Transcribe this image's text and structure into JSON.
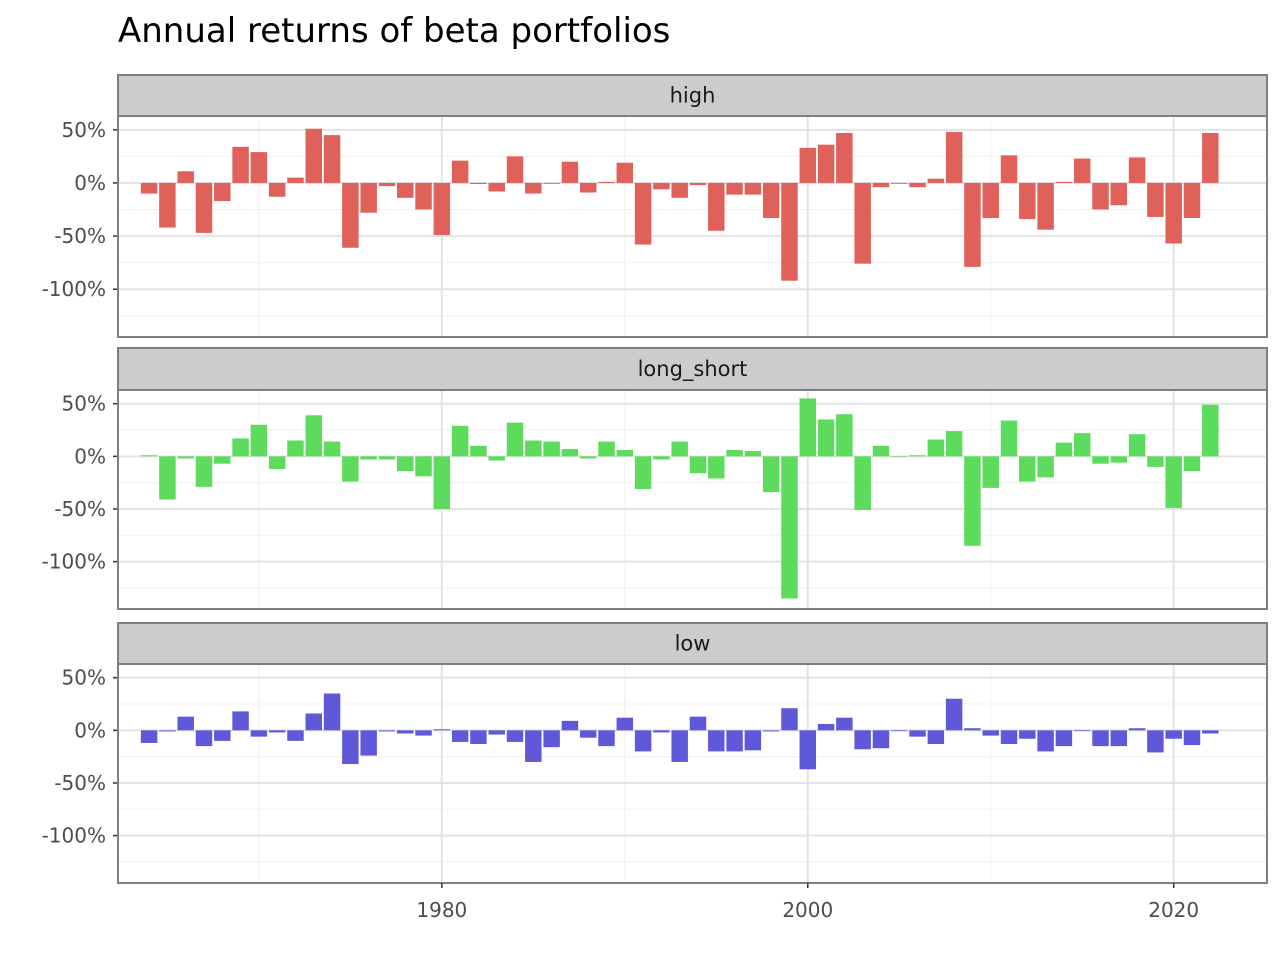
{
  "chart_data": {
    "type": "bar",
    "title": "Annual returns of beta portfolios",
    "xlabel": "",
    "ylabel": "",
    "x_ticks": [
      1980,
      2000,
      2020
    ],
    "y_ticks": [
      -100,
      -50,
      0,
      50
    ],
    "y_tick_labels": [
      "-100%",
      "-50%",
      "0%",
      "50%"
    ],
    "xlim": [
      1962.3,
      2025.1
    ],
    "ylim": [
      -145,
      63
    ],
    "grid": true,
    "colors": {
      "high": "#e0605a",
      "long_short": "#5ddb5d",
      "low": "#5f59d9"
    },
    "years": [
      1964,
      1965,
      1966,
      1967,
      1968,
      1969,
      1970,
      1971,
      1972,
      1973,
      1974,
      1975,
      1976,
      1977,
      1978,
      1979,
      1980,
      1981,
      1982,
      1983,
      1984,
      1985,
      1986,
      1987,
      1988,
      1989,
      1990,
      1991,
      1992,
      1993,
      1994,
      1995,
      1996,
      1997,
      1998,
      1999,
      2000,
      2001,
      2002,
      2003,
      2004,
      2005,
      2006,
      2007,
      2008,
      2009,
      2010,
      2011,
      2012,
      2013,
      2014,
      2015,
      2016,
      2017,
      2018,
      2019,
      2020,
      2021,
      2022
    ],
    "series": [
      {
        "name": "high",
        "values": [
          -10,
          -42,
          11,
          -47,
          -17,
          34,
          29,
          -13,
          5,
          51,
          45,
          -61,
          -28,
          -3,
          -14,
          -25,
          -49,
          21,
          -1,
          -8,
          25,
          -10,
          0,
          20,
          -9,
          1,
          19,
          -58,
          -6,
          -14,
          -2,
          -45,
          -11,
          -11,
          -33,
          -92,
          33,
          36,
          47,
          -76,
          -4,
          0,
          -4,
          4,
          48,
          -79,
          -33,
          26,
          -34,
          -44,
          1,
          23,
          -25,
          -21,
          24,
          -32,
          -57,
          -33,
          47
        ]
      },
      {
        "name": "long_short",
        "values": [
          1,
          -41,
          -2,
          -29,
          -7,
          17,
          30,
          -12,
          15,
          39,
          14,
          -24,
          -3,
          -3,
          -14,
          -19,
          -50,
          29,
          10,
          -4,
          32,
          15,
          14,
          7,
          -2,
          14,
          6,
          -31,
          -3,
          14,
          -16,
          -21,
          6,
          5,
          -34,
          -135,
          55,
          35,
          40,
          -51,
          10,
          0,
          1,
          16,
          24,
          -85,
          -30,
          34,
          -24,
          -20,
          13,
          22,
          -7,
          -6,
          21,
          -10,
          -49,
          -14,
          49
        ]
      },
      {
        "name": "low",
        "values": [
          -12,
          -1,
          13,
          -15,
          -10,
          18,
          -6,
          -2,
          -10,
          16,
          35,
          -32,
          -24,
          -1,
          -3,
          -5,
          1,
          -11,
          -13,
          -4,
          -11,
          -30,
          -16,
          9,
          -7,
          -15,
          12,
          -20,
          -2,
          -30,
          13,
          -20,
          -20,
          -19,
          -1,
          21,
          -37,
          6,
          12,
          -18,
          -17,
          0,
          -6,
          -13,
          30,
          2,
          -5,
          -13,
          -8,
          -20,
          -15,
          0,
          -15,
          -15,
          2,
          -21,
          -8,
          -14,
          -3
        ]
      }
    ]
  }
}
